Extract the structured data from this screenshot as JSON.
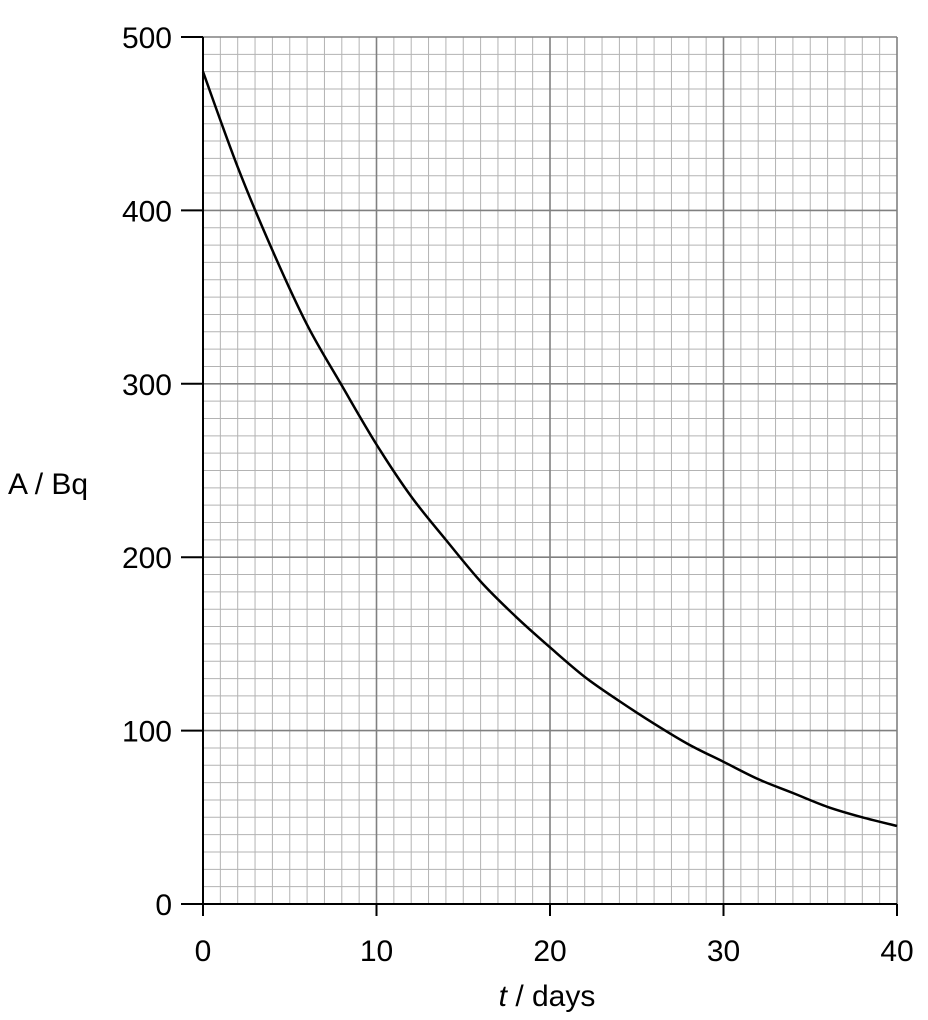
{
  "chart_data": {
    "type": "line",
    "title": "",
    "xlabel_var": "t",
    "xlabel_unit": " / days",
    "ylabel": "A / Bq",
    "xlim": [
      0,
      40
    ],
    "ylim": [
      0,
      500
    ],
    "x_ticks": [
      "0",
      "10",
      "20",
      "30",
      "40"
    ],
    "y_ticks": [
      "0",
      "100",
      "200",
      "300",
      "400",
      "500"
    ],
    "grid": true,
    "legend": "none",
    "series": [
      {
        "x": [
          0,
          2,
          4,
          6,
          8,
          10,
          12,
          14,
          16,
          18,
          20,
          22,
          24,
          26,
          28,
          30,
          32,
          34,
          36,
          38,
          40
        ],
        "y": [
          480,
          425,
          377,
          334,
          299,
          265,
          235,
          210,
          186,
          166,
          148,
          131,
          117,
          104,
          92,
          82,
          72,
          64,
          56,
          50,
          45
        ]
      }
    ],
    "colors": {
      "curve": "#000000",
      "major_grid": "#808080",
      "minor_grid": "#b3b3b3",
      "axis": "#000000"
    }
  }
}
